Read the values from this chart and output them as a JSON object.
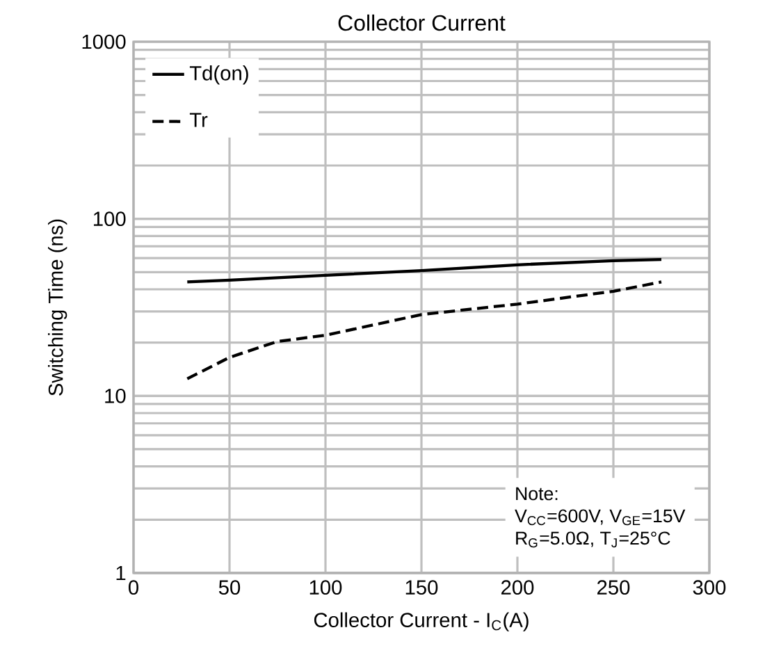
{
  "chart_data": {
    "type": "line",
    "title": "Collector Current",
    "xlabel": "Collector Current - I$_{C}$(A)",
    "ylabel": "Switching Time (ns)",
    "xlim": [
      0,
      300
    ],
    "xticks": [
      0,
      50,
      100,
      150,
      200,
      250,
      300
    ],
    "ylim": [
      1,
      1000
    ],
    "yticks": [
      1,
      10,
      100,
      1000
    ],
    "log": "y",
    "grid": true,
    "legend": "top left",
    "series": [
      {
        "name": "Td(on)",
        "color": "#000000",
        "line_style": "solid",
        "x": [
          28,
          50,
          100,
          150,
          200,
          250,
          275
        ],
        "values": [
          44,
          45,
          48,
          51,
          55,
          58,
          59
        ]
      },
      {
        "name": "Tr",
        "color": "#000000",
        "line_style": "dashed",
        "x": [
          28,
          50,
          75,
          100,
          150,
          200,
          250,
          275
        ],
        "values": [
          12.5,
          16.5,
          20.3,
          22,
          28.8,
          33,
          39,
          44
        ]
      }
    ],
    "annotations": [
      "Note:",
      "V$_{CC}$=600V, V$_{GE}$=15V",
      "R$_{G}$=5.0Ω, T$_{J}$=25°C"
    ]
  }
}
